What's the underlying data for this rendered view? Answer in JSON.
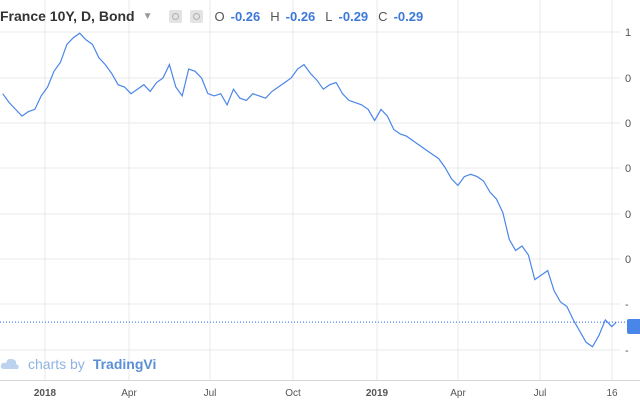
{
  "header": {
    "title": "France 10Y, D, Bond",
    "ohlc": [
      {
        "label": "O",
        "value": "-0.26"
      },
      {
        "label": "H",
        "value": "-0.26"
      },
      {
        "label": "L",
        "value": "-0.29"
      },
      {
        "label": "C",
        "value": "-0.29"
      }
    ]
  },
  "watermark": {
    "prefix": "charts by",
    "brand": "TradingVi"
  },
  "colors": {
    "line": "#4a86e8",
    "grid": "#e9e9e9",
    "axis_text": "#555555",
    "price_line": "#2962ff"
  },
  "chart_data": {
    "type": "line",
    "title": "France 10Y, D, Bond",
    "xlabel": "",
    "ylabel": "",
    "grid": true,
    "x_tick_labels": [
      "2018",
      "Apr",
      "Jul",
      "Oct",
      "2019",
      "Apr",
      "Jul",
      "16"
    ],
    "y_tick_labels": [
      "1",
      "0",
      "0",
      "0",
      "0",
      "0",
      "-",
      "-"
    ],
    "last_value": -0.29,
    "series": [
      {
        "x": [
          "2017-11-15",
          "2017-11-22",
          "2017-11-29",
          "2017-12-06",
          "2017-12-13",
          "2017-12-20",
          "2017-12-27",
          "2018-01-03",
          "2018-01-10",
          "2018-01-17",
          "2018-01-24",
          "2018-01-31",
          "2018-02-07",
          "2018-02-14",
          "2018-02-21",
          "2018-02-28",
          "2018-03-07",
          "2018-03-14",
          "2018-03-21",
          "2018-03-28",
          "2018-04-04",
          "2018-04-11",
          "2018-04-18",
          "2018-04-25",
          "2018-05-02",
          "2018-05-09",
          "2018-05-16",
          "2018-05-23",
          "2018-05-30",
          "2018-06-06",
          "2018-06-13",
          "2018-06-20",
          "2018-06-27",
          "2018-07-04",
          "2018-07-11",
          "2018-07-18",
          "2018-07-25",
          "2018-08-01",
          "2018-08-08",
          "2018-08-15",
          "2018-08-22",
          "2018-08-29",
          "2018-09-05",
          "2018-09-12",
          "2018-09-19",
          "2018-09-26",
          "2018-10-03",
          "2018-10-10",
          "2018-10-17",
          "2018-10-24",
          "2018-10-31",
          "2018-11-07",
          "2018-11-14",
          "2018-11-21",
          "2018-11-28",
          "2018-12-05",
          "2018-12-12",
          "2018-12-19",
          "2018-12-26",
          "2019-01-02",
          "2019-01-09",
          "2019-01-16",
          "2019-01-23",
          "2019-01-30",
          "2019-02-06",
          "2019-02-13",
          "2019-02-20",
          "2019-02-27",
          "2019-03-06",
          "2019-03-13",
          "2019-03-20",
          "2019-03-27",
          "2019-04-03",
          "2019-04-10",
          "2019-04-17",
          "2019-04-24",
          "2019-05-01",
          "2019-05-08",
          "2019-05-15",
          "2019-05-22",
          "2019-05-29",
          "2019-06-05",
          "2019-06-12",
          "2019-06-19",
          "2019-06-26",
          "2019-07-03",
          "2019-07-10",
          "2019-07-17",
          "2019-07-24",
          "2019-07-31",
          "2019-08-07",
          "2019-08-14",
          "2019-08-21",
          "2019-08-28",
          "2019-09-04",
          "2019-09-11",
          "2019-09-16"
        ],
        "values": [
          0.73,
          0.69,
          0.66,
          0.63,
          0.65,
          0.66,
          0.72,
          0.76,
          0.83,
          0.87,
          0.95,
          0.98,
          1.0,
          0.97,
          0.95,
          0.89,
          0.86,
          0.82,
          0.77,
          0.76,
          0.73,
          0.75,
          0.77,
          0.74,
          0.78,
          0.8,
          0.86,
          0.76,
          0.72,
          0.84,
          0.83,
          0.8,
          0.73,
          0.72,
          0.73,
          0.68,
          0.75,
          0.71,
          0.7,
          0.73,
          0.72,
          0.71,
          0.74,
          0.76,
          0.78,
          0.8,
          0.84,
          0.86,
          0.82,
          0.79,
          0.75,
          0.77,
          0.78,
          0.73,
          0.7,
          0.69,
          0.68,
          0.66,
          0.61,
          0.66,
          0.63,
          0.57,
          0.55,
          0.54,
          0.52,
          0.5,
          0.48,
          0.46,
          0.44,
          0.4,
          0.35,
          0.32,
          0.36,
          0.37,
          0.36,
          0.34,
          0.29,
          0.26,
          0.2,
          0.08,
          0.03,
          0.05,
          0.01,
          -0.1,
          -0.08,
          -0.06,
          -0.15,
          -0.2,
          -0.22,
          -0.28,
          -0.33,
          -0.38,
          -0.4,
          -0.35,
          -0.28,
          -0.31,
          -0.29
        ]
      }
    ]
  }
}
